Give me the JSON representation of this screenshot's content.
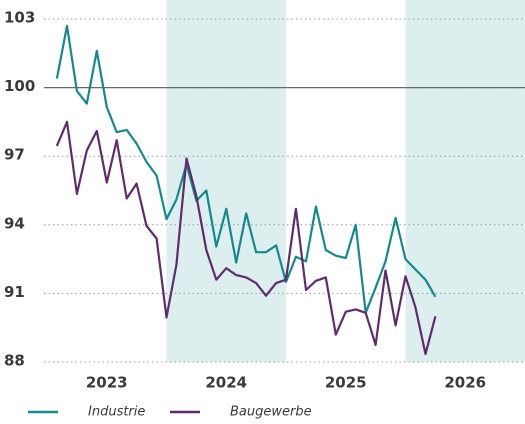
{
  "chart_data": {
    "type": "line",
    "x": [
      2023.083,
      2023.167,
      2023.25,
      2023.333,
      2023.417,
      2023.5,
      2023.583,
      2023.667,
      2023.75,
      2023.833,
      2023.917,
      2024,
      2024.083,
      2024.167,
      2024.25,
      2024.333,
      2024.417,
      2024.5,
      2024.583,
      2024.667,
      2024.75,
      2024.833,
      2024.917,
      2025,
      2025.083,
      2025.167,
      2025.25,
      2025.333,
      2025.417,
      2025.5,
      2025.583,
      2025.667,
      2025.75,
      2025.833,
      2025.917,
      2026,
      2026.083,
      2026.167,
      2026.25
    ],
    "series": [
      {
        "name": "Industrie",
        "color": "#15898b",
        "values": [
          100.4,
          102.7,
          99.85,
          99.3,
          101.6,
          99.15,
          98.05,
          98.15,
          97.55,
          96.75,
          96.15,
          94.25,
          95.1,
          96.65,
          95.05,
          95.5,
          93.05,
          94.7,
          92.35,
          94.5,
          92.8,
          92.8,
          93.1,
          91.5,
          92.6,
          92.4,
          94.8,
          92.9,
          92.65,
          92.55,
          94.0,
          90.15,
          91.25,
          92.4,
          94.3,
          92.5,
          92.05,
          91.6,
          90.85
        ]
      },
      {
        "name": "Baugewerbe",
        "color": "#5e2c6d",
        "values": [
          97.45,
          98.5,
          95.35,
          97.25,
          98.1,
          95.85,
          97.7,
          95.15,
          95.8,
          93.95,
          93.4,
          89.95,
          92.25,
          96.9,
          95.25,
          92.9,
          91.6,
          92.1,
          91.8,
          91.7,
          91.45,
          90.9,
          91.45,
          91.6,
          94.7,
          91.15,
          91.55,
          91.7,
          89.2,
          90.2,
          90.3,
          90.15,
          88.75,
          92.0,
          89.6,
          91.75,
          90.4,
          88.35,
          90.0
        ]
      }
    ],
    "xlim": [
      2023,
      2027
    ],
    "xticks": [
      {
        "value": 2023.5,
        "label": "2023"
      },
      {
        "value": 2024.5,
        "label": "2024"
      },
      {
        "value": 2025.5,
        "label": "2025"
      },
      {
        "value": 2026.5,
        "label": "2026"
      }
    ],
    "shaded_years": [
      2024,
      2026
    ],
    "ylim": [
      88,
      103
    ],
    "yticks": [
      88,
      91,
      94,
      97,
      100,
      103
    ],
    "reference_line": 100,
    "grid": true
  }
}
